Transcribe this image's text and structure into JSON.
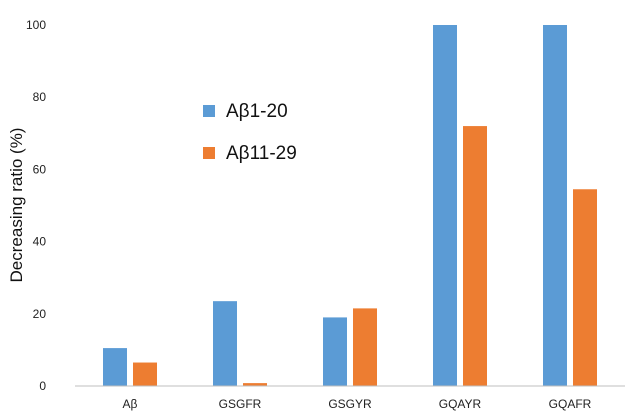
{
  "chart_data": {
    "type": "bar",
    "title": "",
    "xlabel": "",
    "ylabel": "Decreasing ratio (%)",
    "ylim": [
      0,
      100
    ],
    "yticks": [
      0,
      20,
      40,
      60,
      80,
      100
    ],
    "grid": false,
    "legend_position": "upper-center",
    "categories": [
      "Aβ",
      "GSGFR",
      "GSGYR",
      "GQAYR",
      "GQAFR"
    ],
    "series": [
      {
        "name": "Aβ1-20",
        "color": "#5B9BD5",
        "values": [
          10.5,
          23.5,
          19,
          100,
          100
        ]
      },
      {
        "name": "Aβ11-29",
        "color": "#ED7D31",
        "values": [
          6.5,
          0.8,
          21.5,
          72,
          54.5
        ]
      }
    ]
  }
}
